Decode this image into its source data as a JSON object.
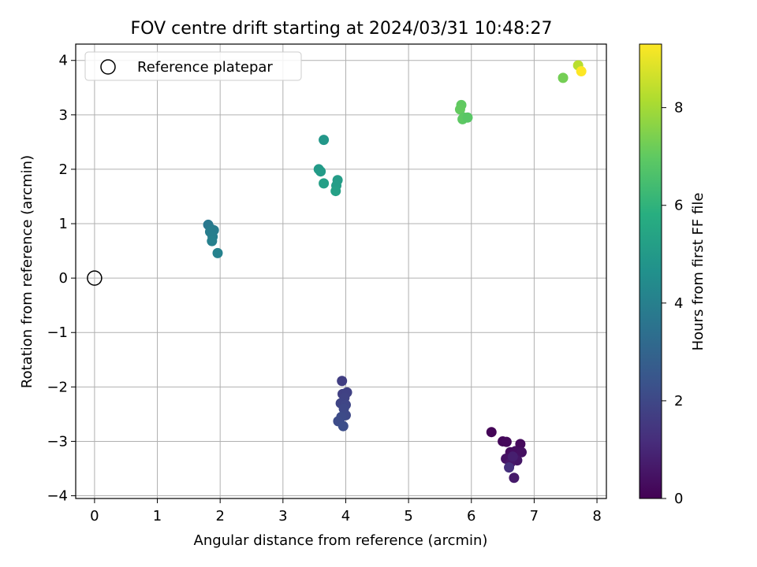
{
  "chart_data": {
    "type": "scatter",
    "title": "FOV centre drift starting at 2024/03/31 10:48:27",
    "xlabel": "Angular distance from reference (arcmin)",
    "ylabel": "Rotation from reference (arcmin)",
    "xlim": [
      -0.3,
      8.15
    ],
    "ylim": [
      -4.05,
      4.3
    ],
    "xticks": [
      0,
      1,
      2,
      3,
      4,
      5,
      6,
      7,
      8
    ],
    "yticks": [
      -4,
      -3,
      -2,
      -1,
      0,
      1,
      2,
      3,
      4
    ],
    "xtick_labels": [
      "0",
      "1",
      "2",
      "3",
      "4",
      "5",
      "6",
      "7",
      "8"
    ],
    "ytick_labels": [
      "−4",
      "−3",
      "−2",
      "−1",
      "0",
      "1",
      "2",
      "3",
      "4"
    ],
    "grid": true,
    "legend": {
      "placement": "upper-left",
      "entries": [
        "Reference platepar"
      ]
    },
    "reference_point": {
      "x": 0,
      "y": 0,
      "marker": "open-circle",
      "name": "Reference platepar"
    },
    "colorbar": {
      "label": "Hours from first FF file",
      "colormap": "viridis",
      "range": [
        0,
        9.3
      ],
      "ticks": [
        0,
        2,
        4,
        6,
        8
      ],
      "tick_labels": [
        "0",
        "2",
        "4",
        "6",
        "8"
      ]
    },
    "points": [
      {
        "x": 6.32,
        "y": -2.83,
        "c": 0.1
      },
      {
        "x": 6.5,
        "y": -3.0,
        "c": 0.15
      },
      {
        "x": 6.56,
        "y": -3.01,
        "c": 0.2
      },
      {
        "x": 6.78,
        "y": -3.05,
        "c": 0.25
      },
      {
        "x": 6.62,
        "y": -3.2,
        "c": 0.3
      },
      {
        "x": 6.7,
        "y": -3.18,
        "c": 0.35
      },
      {
        "x": 6.8,
        "y": -3.2,
        "c": 0.4
      },
      {
        "x": 6.55,
        "y": -3.32,
        "c": 0.45
      },
      {
        "x": 6.65,
        "y": -3.3,
        "c": 0.5
      },
      {
        "x": 6.73,
        "y": -3.35,
        "c": 0.55
      },
      {
        "x": 6.62,
        "y": -3.4,
        "c": 0.6
      },
      {
        "x": 6.68,
        "y": -3.67,
        "c": 0.65
      },
      {
        "x": 6.66,
        "y": -3.28,
        "c": 0.8
      },
      {
        "x": 6.6,
        "y": -3.48,
        "c": 1.3
      },
      {
        "x": 3.94,
        "y": -1.89,
        "c": 1.7
      },
      {
        "x": 3.95,
        "y": -2.13,
        "c": 1.75
      },
      {
        "x": 4.02,
        "y": -2.1,
        "c": 1.8
      },
      {
        "x": 3.98,
        "y": -2.2,
        "c": 1.85
      },
      {
        "x": 3.92,
        "y": -2.3,
        "c": 1.9
      },
      {
        "x": 4.0,
        "y": -2.33,
        "c": 1.95
      },
      {
        "x": 3.97,
        "y": -2.4,
        "c": 2.0
      },
      {
        "x": 4.0,
        "y": -2.52,
        "c": 2.05
      },
      {
        "x": 3.93,
        "y": -2.55,
        "c": 2.1
      },
      {
        "x": 3.88,
        "y": -2.63,
        "c": 2.15
      },
      {
        "x": 3.96,
        "y": -2.72,
        "c": 2.2
      },
      {
        "x": 1.81,
        "y": 0.98,
        "c": 3.7
      },
      {
        "x": 1.86,
        "y": 0.9,
        "c": 3.8
      },
      {
        "x": 1.9,
        "y": 0.88,
        "c": 3.85
      },
      {
        "x": 1.84,
        "y": 0.85,
        "c": 3.9
      },
      {
        "x": 1.88,
        "y": 0.76,
        "c": 3.95
      },
      {
        "x": 1.87,
        "y": 0.68,
        "c": 4.0
      },
      {
        "x": 1.96,
        "y": 0.46,
        "c": 4.1
      },
      {
        "x": 3.65,
        "y": 2.54,
        "c": 4.9
      },
      {
        "x": 3.57,
        "y": 2.0,
        "c": 5.0
      },
      {
        "x": 3.6,
        "y": 1.96,
        "c": 5.05
      },
      {
        "x": 3.87,
        "y": 1.8,
        "c": 5.1
      },
      {
        "x": 3.85,
        "y": 1.7,
        "c": 5.15
      },
      {
        "x": 3.65,
        "y": 1.74,
        "c": 5.2
      },
      {
        "x": 3.84,
        "y": 1.6,
        "c": 5.25
      },
      {
        "x": 5.84,
        "y": 3.18,
        "c": 7.0
      },
      {
        "x": 5.82,
        "y": 3.1,
        "c": 7.05
      },
      {
        "x": 5.88,
        "y": 2.95,
        "c": 6.9
      },
      {
        "x": 5.86,
        "y": 2.92,
        "c": 6.95
      },
      {
        "x": 5.94,
        "y": 2.95,
        "c": 6.85
      },
      {
        "x": 7.46,
        "y": 3.68,
        "c": 7.3
      },
      {
        "x": 7.7,
        "y": 3.91,
        "c": 8.3
      },
      {
        "x": 7.75,
        "y": 3.8,
        "c": 9.3
      }
    ]
  }
}
